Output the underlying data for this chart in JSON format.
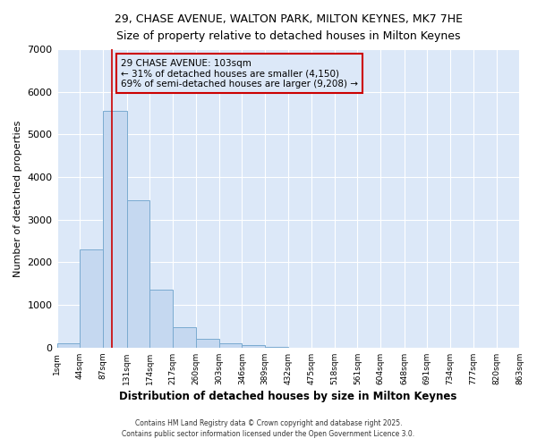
{
  "title_line1": "29, CHASE AVENUE, WALTON PARK, MILTON KEYNES, MK7 7HE",
  "title_line2": "Size of property relative to detached houses in Milton Keynes",
  "xlabel": "Distribution of detached houses by size in Milton Keynes",
  "ylabel": "Number of detached properties",
  "bar_heights": [
    100,
    2300,
    5550,
    3450,
    1350,
    470,
    200,
    100,
    50,
    10,
    0,
    0,
    0,
    0,
    0,
    0,
    0,
    0,
    0,
    0
  ],
  "bin_edges": [
    1,
    44,
    87,
    131,
    174,
    217,
    260,
    303,
    346,
    389,
    432,
    475,
    518,
    561,
    604,
    648,
    691,
    734,
    777,
    820,
    863
  ],
  "x_tick_labels": [
    "1sqm",
    "44sqm",
    "87sqm",
    "131sqm",
    "174sqm",
    "217sqm",
    "260sqm",
    "303sqm",
    "346sqm",
    "389sqm",
    "432sqm",
    "475sqm",
    "518sqm",
    "561sqm",
    "604sqm",
    "648sqm",
    "691sqm",
    "734sqm",
    "777sqm",
    "820sqm",
    "863sqm"
  ],
  "bar_color": "#c5d8f0",
  "bar_edgecolor": "#7aaad0",
  "plot_bg_color": "#dce8f8",
  "fig_bg_color": "#ffffff",
  "grid_color": "#ffffff",
  "vline_x": 103,
  "vline_color": "#cc0000",
  "annotation_text": "29 CHASE AVENUE: 103sqm\n← 31% of detached houses are smaller (4,150)\n69% of semi-detached houses are larger (9,208) →",
  "annotation_box_edgecolor": "#cc0000",
  "ylim": [
    0,
    7000
  ],
  "yticks": [
    0,
    1000,
    2000,
    3000,
    4000,
    5000,
    6000,
    7000
  ],
  "footer_line1": "Contains HM Land Registry data © Crown copyright and database right 2025.",
  "footer_line2": "Contains public sector information licensed under the Open Government Licence 3.0."
}
